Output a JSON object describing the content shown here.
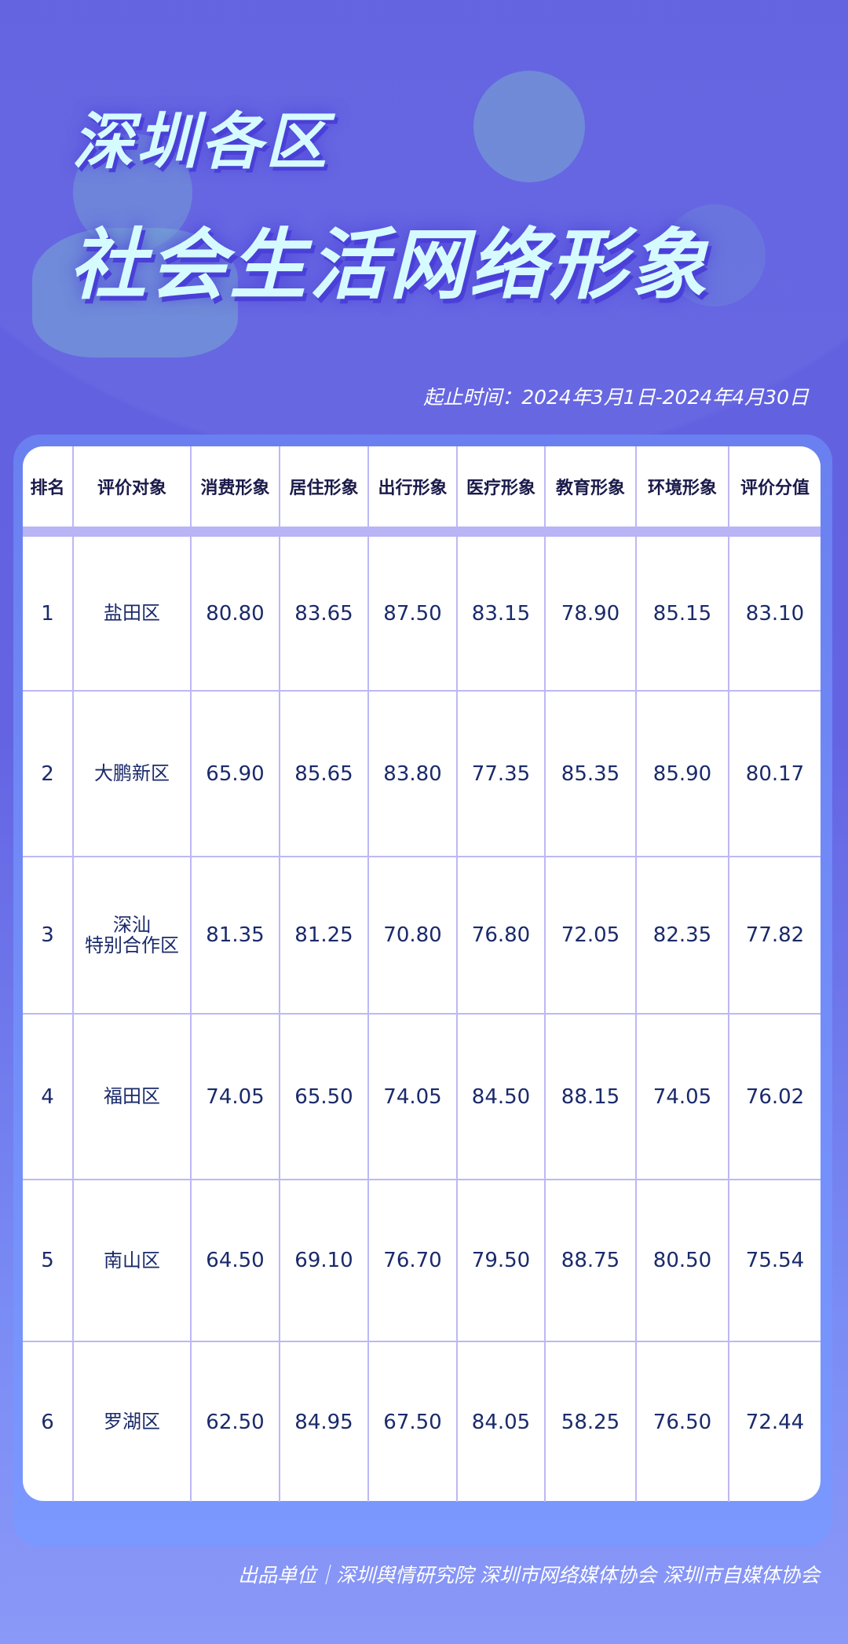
{
  "title_line1": "深圳各区",
  "title_line2": "社会生活网络形象",
  "date_range": "起止时间：2024年3月1日-2024年4月30日",
  "table": {
    "headers": [
      "排名",
      "评价对象",
      "消费形象",
      "居住形象",
      "出行形象",
      "医疗形象",
      "教育形象",
      "环境形象",
      "评价分值"
    ],
    "rows": [
      [
        "1",
        "盐田区",
        "80.80",
        "83.65",
        "87.50",
        "83.15",
        "78.90",
        "85.15",
        "83.10"
      ],
      [
        "2",
        "大鹏新区",
        "65.90",
        "85.65",
        "83.80",
        "77.35",
        "85.35",
        "85.90",
        "80.17"
      ],
      [
        "3",
        "深汕\n特别合作区",
        "81.35",
        "81.25",
        "70.80",
        "76.80",
        "72.05",
        "82.35",
        "77.82"
      ],
      [
        "4",
        "福田区",
        "74.05",
        "65.50",
        "74.05",
        "84.50",
        "88.15",
        "74.05",
        "76.02"
      ],
      [
        "5",
        "南山区",
        "64.50",
        "69.10",
        "76.70",
        "79.50",
        "88.75",
        "80.50",
        "75.54"
      ],
      [
        "6",
        "罗湖区",
        "62.50",
        "84.95",
        "67.50",
        "84.05",
        "58.25",
        "76.50",
        "72.44"
      ]
    ]
  },
  "footer": "出品单位｜深圳舆情研究院 深圳市网络媒体协会 深圳市自媒体协会",
  "colors": {
    "background": "#6262e0",
    "title": "#d6fbff",
    "text": "#1a2a6a",
    "grid": "#bdb8f4"
  }
}
